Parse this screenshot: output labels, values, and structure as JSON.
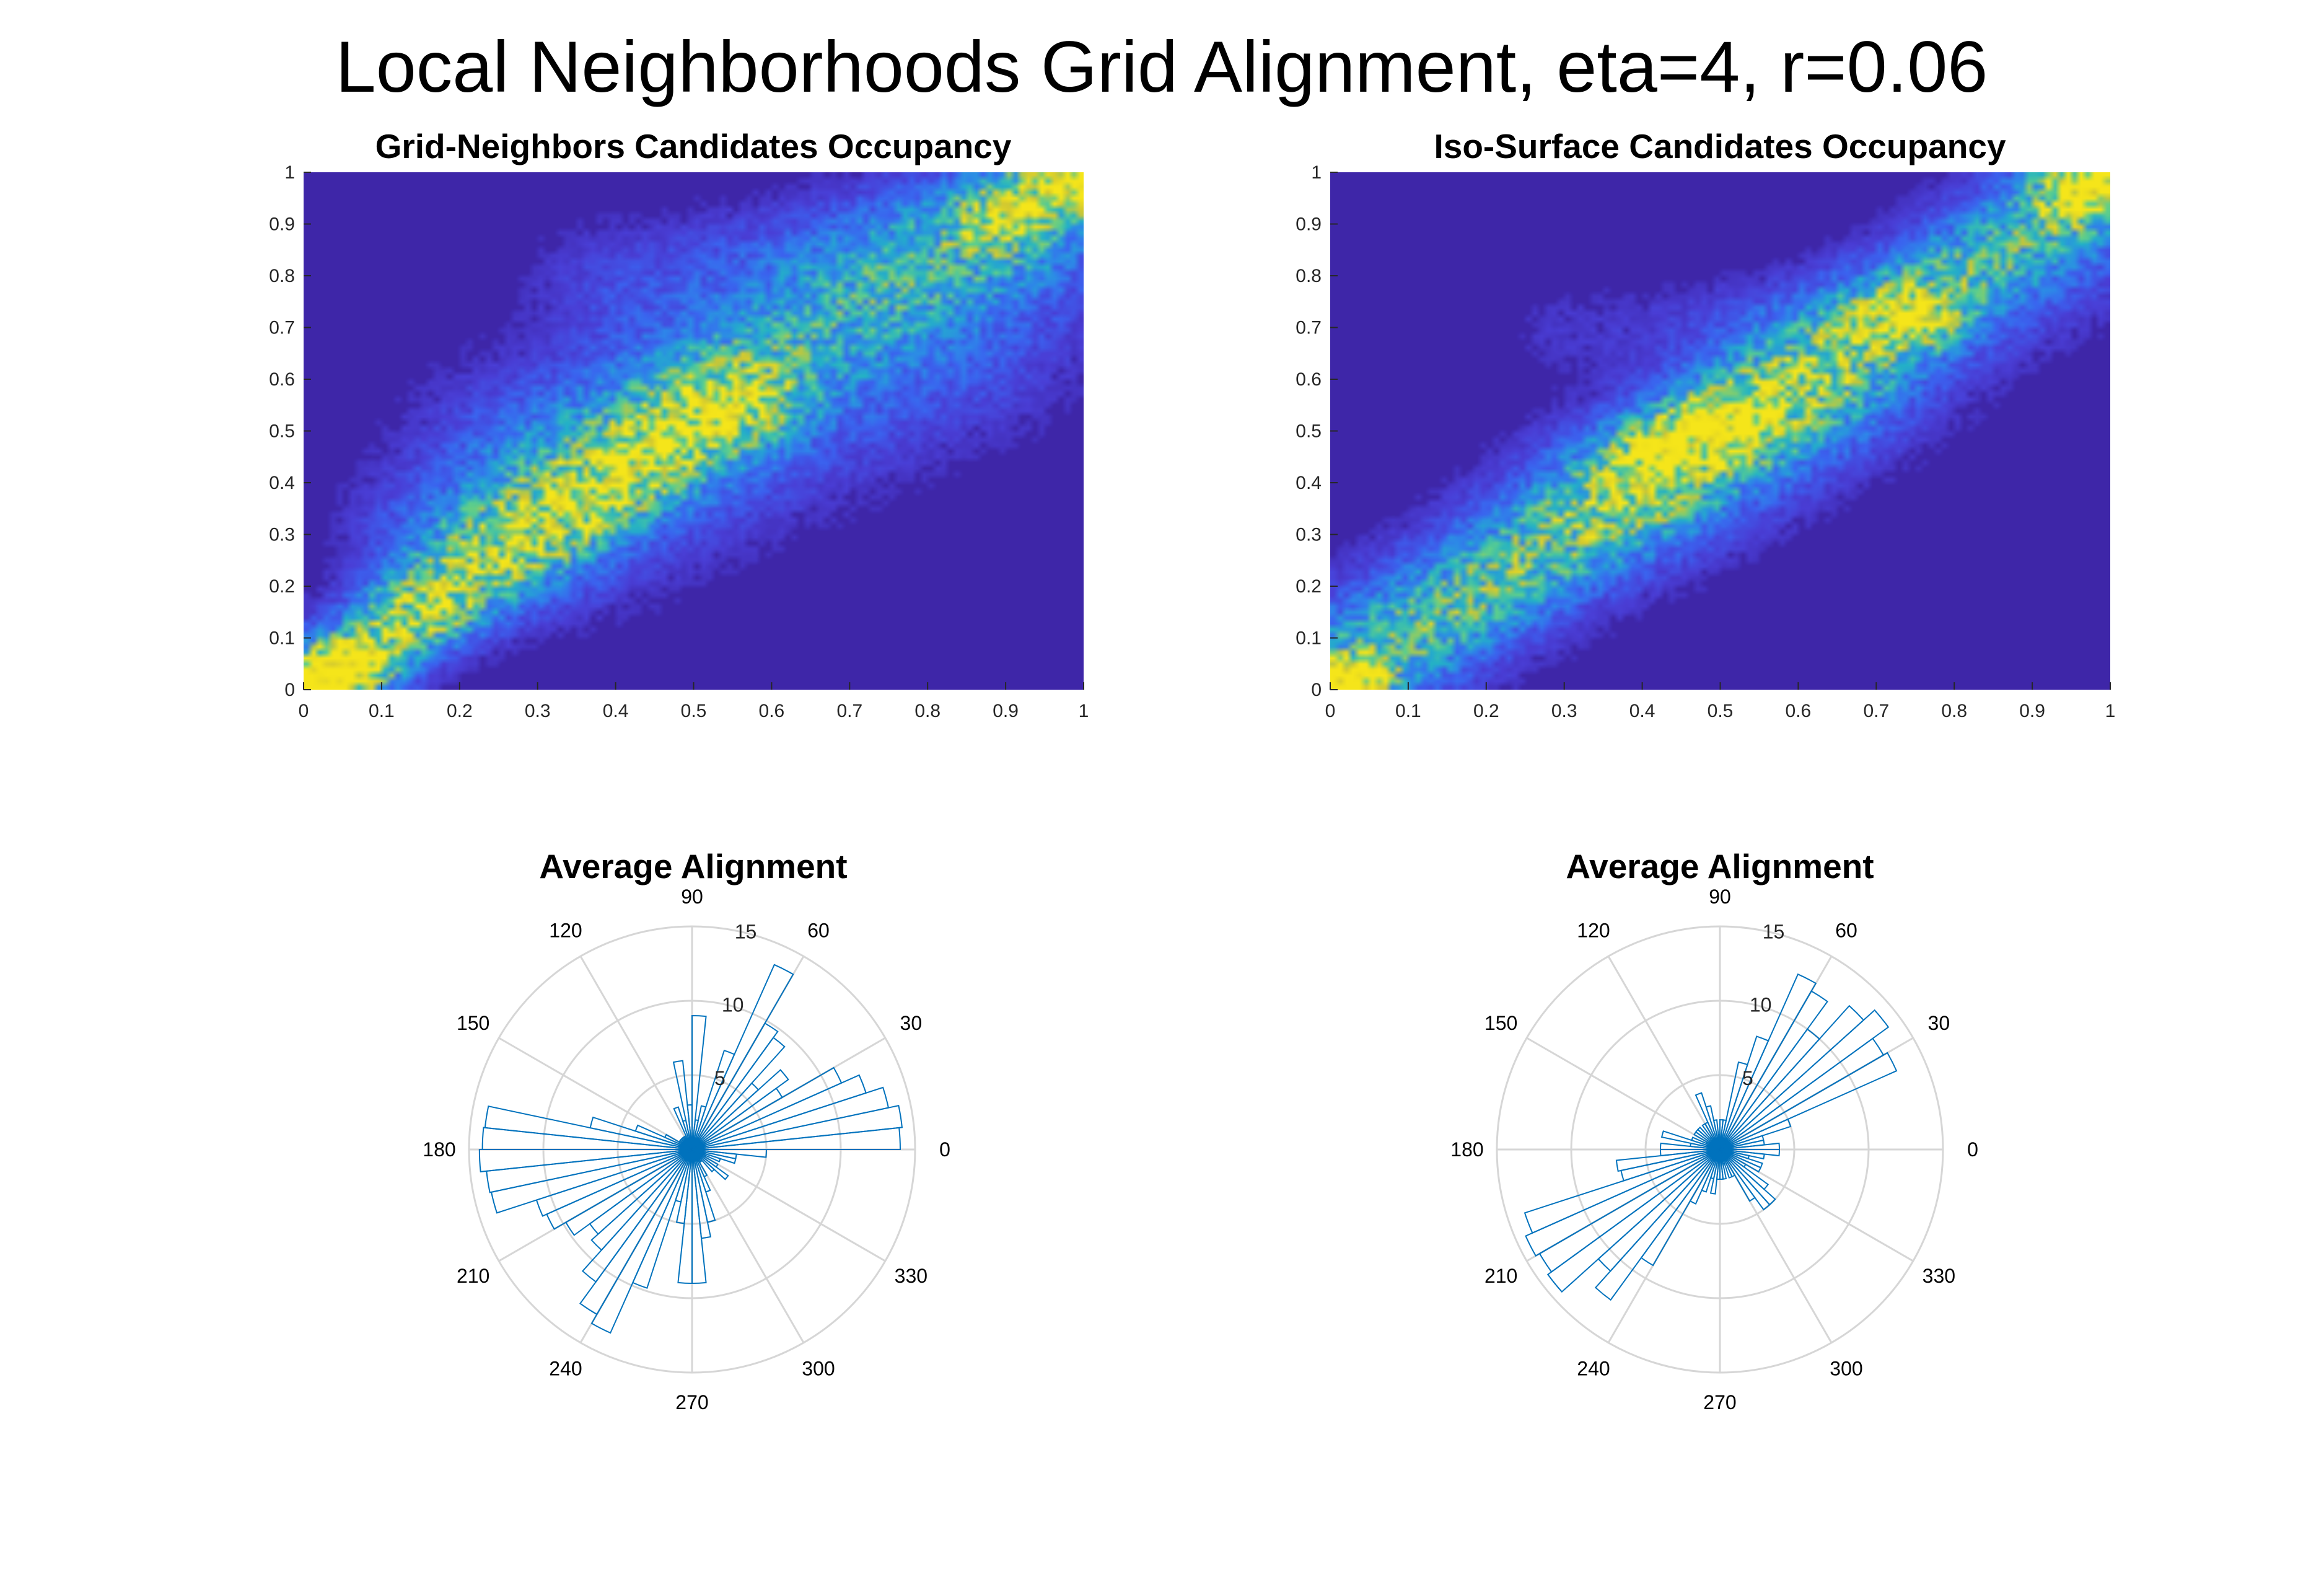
{
  "figure": {
    "title": "Local Neighborhoods Grid Alignment, eta=4, r=0.06"
  },
  "colors": {
    "heatmap_background": "#3e26a8",
    "heatmap_ramp": [
      "#3e26a8",
      "#4a3ed6",
      "#3b63f0",
      "#2d8ae8",
      "#23b2c7",
      "#5fd08b",
      "#cdc535",
      "#f5e51a"
    ],
    "rose_edge": "#0072bd",
    "polar_grid": "#d6d6d6",
    "tick_text": "#262626"
  },
  "chart_data": [
    {
      "id": "grid-neighbors-heatmap",
      "type": "heatmap",
      "title": "Grid-Neighbors Candidates Occupancy",
      "xlabel": "",
      "ylabel": "",
      "xlim": [
        0,
        1
      ],
      "ylim": [
        0,
        1
      ],
      "xticks": [
        "0",
        "0.1",
        "0.2",
        "0.3",
        "0.4",
        "0.5",
        "0.6",
        "0.7",
        "0.8",
        "0.9",
        "1"
      ],
      "yticks": [
        "0",
        "0.1",
        "0.2",
        "0.3",
        "0.4",
        "0.5",
        "0.6",
        "0.7",
        "0.8",
        "0.9",
        "1"
      ],
      "colormap": "parula",
      "ridges": [
        {
          "x0": 0.0,
          "y0": 0.0,
          "x1": 0.55,
          "y1": 0.55,
          "width": 0.06,
          "intensity": 0.55
        },
        {
          "x0": 0.2,
          "y0": 0.3,
          "x1": 0.95,
          "y1": 0.95,
          "width": 0.09,
          "intensity": 0.38
        },
        {
          "x0": 0.3,
          "y0": 0.5,
          "x1": 0.9,
          "y1": 0.8,
          "width": 0.12,
          "intensity": 0.22
        },
        {
          "x0": 0.4,
          "y0": 0.8,
          "x1": 0.9,
          "y1": 0.92,
          "width": 0.08,
          "intensity": 0.18
        },
        {
          "x0": 0.35,
          "y0": 0.25,
          "x1": 0.85,
          "y1": 0.6,
          "width": 0.1,
          "intensity": 0.16
        }
      ],
      "hotspots": [
        {
          "x": 0.02,
          "y": 0.02,
          "intensity": 1.0,
          "spread": 0.035
        },
        {
          "x": 0.07,
          "y": 0.05,
          "intensity": 0.6,
          "spread": 0.04
        },
        {
          "x": 0.99,
          "y": 0.99,
          "intensity": 0.95,
          "spread": 0.04
        },
        {
          "x": 0.9,
          "y": 0.92,
          "intensity": 0.45,
          "spread": 0.04
        },
        {
          "x": 0.15,
          "y": 0.15,
          "intensity": 0.42,
          "spread": 0.05
        }
      ]
    },
    {
      "id": "iso-surface-heatmap",
      "type": "heatmap",
      "title": "Iso-Surface Candidates Occupancy",
      "xlabel": "",
      "ylabel": "",
      "xlim": [
        0,
        1
      ],
      "ylim": [
        0,
        1
      ],
      "xticks": [
        "0",
        "0.1",
        "0.2",
        "0.3",
        "0.4",
        "0.5",
        "0.6",
        "0.7",
        "0.8",
        "0.9",
        "1"
      ],
      "yticks": [
        "0",
        "0.1",
        "0.2",
        "0.3",
        "0.4",
        "0.5",
        "0.6",
        "0.7",
        "0.8",
        "0.9",
        "1"
      ],
      "colormap": "parula",
      "ridges": [
        {
          "x0": 0.0,
          "y0": 0.0,
          "x1": 1.0,
          "y1": 1.0,
          "width": 0.07,
          "intensity": 0.5
        },
        {
          "x0": 0.0,
          "y0": 0.05,
          "x1": 0.6,
          "y1": 0.55,
          "width": 0.1,
          "intensity": 0.26
        },
        {
          "x0": 0.4,
          "y0": 0.4,
          "x1": 1.0,
          "y1": 0.9,
          "width": 0.1,
          "intensity": 0.24
        },
        {
          "x0": 0.3,
          "y0": 0.7,
          "x1": 0.7,
          "y1": 0.75,
          "width": 0.06,
          "intensity": 0.12
        }
      ],
      "hotspots": [
        {
          "x": 0.02,
          "y": 0.02,
          "intensity": 0.8,
          "spread": 0.03
        },
        {
          "x": 0.97,
          "y": 0.97,
          "intensity": 0.85,
          "spread": 0.04
        },
        {
          "x": 0.5,
          "y": 0.52,
          "intensity": 0.42,
          "spread": 0.04
        },
        {
          "x": 0.75,
          "y": 0.72,
          "intensity": 0.42,
          "spread": 0.04
        },
        {
          "x": 0.42,
          "y": 0.47,
          "intensity": 0.35,
          "spread": 0.04
        }
      ]
    },
    {
      "id": "rose-left",
      "type": "polar-histogram",
      "title": "Average Alignment",
      "theta_ticks_deg": [
        0,
        30,
        60,
        90,
        120,
        150,
        180,
        210,
        240,
        270,
        300,
        330
      ],
      "theta_tick_labels": [
        "0",
        "30",
        "60",
        "90",
        "120",
        "150",
        "180",
        "210",
        "240",
        "270",
        "300",
        "330"
      ],
      "r_ticks": [
        5,
        10,
        15
      ],
      "r_tick_labels": [
        "5",
        "10",
        "15"
      ],
      "r_tick_angle_deg": 80,
      "rlim": [
        0,
        15
      ],
      "bin_width_deg": 6,
      "bin_centers_deg": [
        3,
        9,
        15,
        21,
        27,
        33,
        39,
        45,
        51,
        57,
        63,
        69,
        75,
        81,
        87,
        93,
        99,
        105,
        111,
        117,
        123,
        129,
        135,
        141,
        147,
        153,
        159,
        165,
        171,
        177,
        183,
        189,
        195,
        201,
        207,
        213,
        219,
        225,
        231,
        237,
        243,
        249,
        255,
        261,
        267,
        273,
        279,
        285,
        291,
        297,
        303,
        309,
        315,
        321,
        327,
        333,
        339,
        345,
        351,
        357
      ],
      "counts": [
        14,
        14.2,
        13.5,
        12.3,
        11,
        7,
        8,
        6,
        9.3,
        9.8,
        13.6,
        7,
        3,
        2,
        9,
        3,
        6,
        2,
        3,
        1,
        1,
        1,
        1,
        1,
        1,
        2,
        4,
        7,
        14,
        14.1,
        14.3,
        13.9,
        13.8,
        11,
        10.7,
        9.8,
        8.5,
        9.1,
        11,
        12.8,
        13.5,
        9.8,
        3.6,
        5,
        9,
        9,
        6,
        5,
        3,
        2,
        1,
        1,
        2,
        3,
        2,
        1,
        2,
        3,
        3,
        5
      ]
    },
    {
      "id": "rose-right",
      "type": "polar-histogram",
      "title": "Average Alignment",
      "theta_ticks_deg": [
        0,
        30,
        60,
        90,
        120,
        150,
        180,
        210,
        240,
        270,
        300,
        330
      ],
      "theta_tick_labels": [
        "0",
        "30",
        "60",
        "90",
        "120",
        "150",
        "180",
        "210",
        "240",
        "270",
        "300",
        "330"
      ],
      "r_ticks": [
        5,
        10,
        15
      ],
      "r_tick_labels": [
        "5",
        "10",
        "15"
      ],
      "r_tick_angle_deg": 80,
      "rlim": [
        0,
        15
      ],
      "bin_width_deg": 6,
      "bin_centers_deg": [
        3,
        9,
        15,
        21,
        27,
        33,
        39,
        45,
        51,
        57,
        63,
        69,
        75,
        81,
        87,
        93,
        99,
        105,
        111,
        117,
        123,
        129,
        135,
        141,
        147,
        153,
        159,
        165,
        171,
        177,
        183,
        189,
        195,
        201,
        207,
        213,
        219,
        225,
        231,
        237,
        243,
        249,
        255,
        261,
        267,
        273,
        279,
        285,
        291,
        297,
        303,
        309,
        315,
        321,
        327,
        333,
        339,
        345,
        351,
        357
      ],
      "counts": [
        4,
        3,
        3,
        5,
        13,
        12.7,
        14,
        13,
        10,
        12.3,
        12.9,
        8,
        6,
        2,
        2,
        1,
        2,
        3,
        4,
        2,
        2,
        1,
        2,
        2,
        2,
        1,
        2,
        4,
        2,
        4,
        4,
        7,
        6.8,
        13.8,
        14.3,
        14,
        14.3,
        11,
        12.5,
        9,
        4,
        3,
        2,
        3,
        2,
        2,
        2,
        1,
        2,
        2,
        4,
        5,
        5,
        4,
        2,
        3,
        3,
        2,
        3,
        4
      ]
    }
  ]
}
